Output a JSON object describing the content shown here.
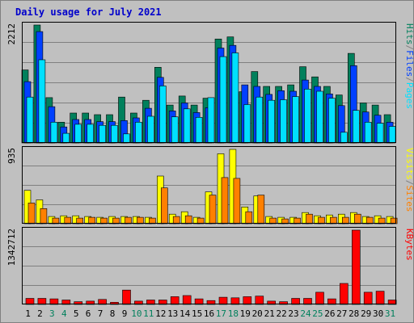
{
  "colors": {
    "background": "#c0c0c0",
    "frame": "#808080",
    "title": "#0000cc",
    "grid": "#808080",
    "hits": "#00805c",
    "files": "#0040ff",
    "pages": "#00e0ff",
    "visits": "#ffff00",
    "sites": "#ff8000",
    "kbytes": "#ff0000",
    "weekend": "#00805c",
    "weekday": "#000000"
  },
  "chart_data": {
    "type": "bar",
    "title": "Daily usage for July 2021",
    "categories": [
      "1",
      "2",
      "3",
      "4",
      "5",
      "6",
      "7",
      "8",
      "9",
      "10",
      "11",
      "12",
      "13",
      "14",
      "15",
      "16",
      "17",
      "18",
      "19",
      "20",
      "21",
      "22",
      "23",
      "24",
      "25",
      "26",
      "27",
      "28",
      "29",
      "30",
      "31"
    ],
    "weekend_days": [
      "3",
      "4",
      "10",
      "11",
      "17",
      "18",
      "24",
      "25",
      "31"
    ],
    "panels": [
      {
        "max_label": "2212",
        "ylim": [
          0,
          2212
        ],
        "legend": [
          {
            "text": "Hits",
            "color_key": "hits"
          },
          {
            "text": "/",
            "color_key": "frame"
          },
          {
            "text": "Files",
            "color_key": "files"
          },
          {
            "text": "/",
            "color_key": "frame"
          },
          {
            "text": "Pages",
            "color_key": "pages"
          }
        ],
        "series": [
          {
            "name": "Hits",
            "color_key": "hits",
            "values": [
              1370,
              2212,
              850,
              390,
              560,
              560,
              530,
              530,
              860,
              560,
              800,
              1420,
              710,
              880,
              710,
              840,
              1950,
              1990,
              960,
              1340,
              1060,
              1060,
              1090,
              1430,
              1240,
              1060,
              900,
              1680,
              750,
              710,
              530
            ]
          },
          {
            "name": "Files",
            "color_key": "files",
            "values": [
              1150,
              2090,
              680,
              300,
              440,
              440,
              400,
              400,
              420,
              470,
              650,
              1230,
              600,
              750,
              570,
              660,
              1780,
              1830,
              1090,
              1060,
              910,
              980,
              970,
              1180,
              1060,
              920,
              700,
              1450,
              580,
              520,
              390
            ]
          },
          {
            "name": "Pages",
            "color_key": "pages",
            "values": [
              860,
              1560,
              390,
              180,
              350,
              350,
              330,
              330,
              170,
              390,
              500,
              1070,
              490,
              640,
              480,
              850,
              1620,
              1690,
              720,
              860,
              800,
              810,
              870,
              1010,
              970,
              840,
              200,
              610,
              390,
              370,
              310
            ]
          }
        ]
      },
      {
        "max_label": "935",
        "ylim": [
          0,
          935
        ],
        "legend": [
          {
            "text": "Visits",
            "color_key": "visits"
          },
          {
            "text": "/",
            "color_key": "frame"
          },
          {
            "text": "Sites",
            "color_key": "sites"
          }
        ],
        "series": [
          {
            "name": "Visits",
            "color_key": "visits",
            "values": [
              420,
              300,
              90,
              100,
              100,
              90,
              80,
              90,
              90,
              90,
              80,
              600,
              120,
              150,
              80,
              400,
              880,
              935,
              210,
              350,
              90,
              80,
              80,
              140,
              100,
              110,
              120,
              140,
              90,
              100,
              90
            ]
          },
          {
            "name": "Sites",
            "color_key": "sites",
            "values": [
              260,
              190,
              70,
              80,
              70,
              80,
              70,
              70,
              80,
              80,
              70,
              450,
              90,
              100,
              70,
              360,
              580,
              570,
              150,
              360,
              70,
              60,
              70,
              120,
              80,
              80,
              80,
              120,
              80,
              70,
              70
            ]
          }
        ]
      },
      {
        "max_label": "1342712",
        "ylim": [
          0,
          1342712
        ],
        "legend": [
          {
            "text": "KBytes",
            "color_key": "kbytes"
          }
        ],
        "series": [
          {
            "name": "KBytes",
            "color_key": "kbytes",
            "values": [
              110000,
              110000,
              100000,
              80000,
              50000,
              60000,
              90000,
              40000,
              260000,
              60000,
              80000,
              80000,
              140000,
              160000,
              100000,
              70000,
              130000,
              120000,
              140000,
              150000,
              60000,
              50000,
              110000,
              110000,
              220000,
              100000,
              380000,
              1342712,
              220000,
              240000,
              80000
            ]
          }
        ]
      }
    ]
  }
}
